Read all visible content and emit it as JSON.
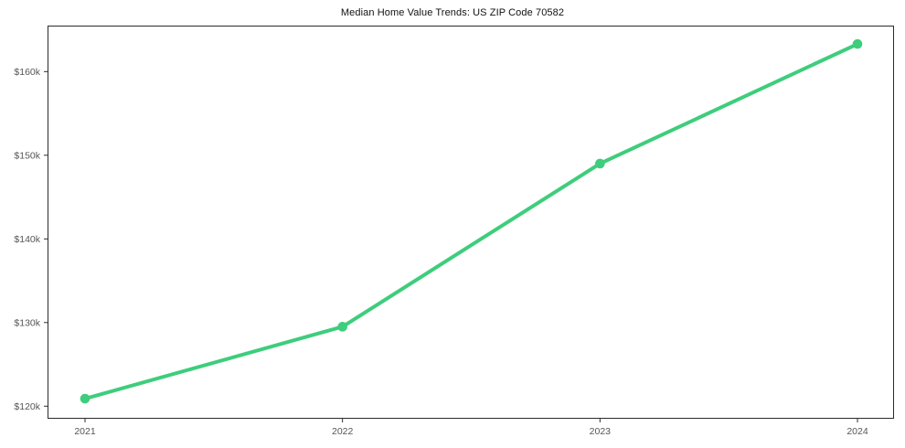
{
  "chart": {
    "line_color": "#3ecd7c",
    "marker_color": "#3ecd7c",
    "axis_color": "#2b2b2b",
    "tick_label_color": "#555555",
    "title_color": "#111111",
    "background_color": "#ffffff"
  },
  "chart_data": {
    "type": "line",
    "title": "Median Home Value Trends: US ZIP Code 70582",
    "x": [
      "2021",
      "2022",
      "2023",
      "2024"
    ],
    "values": [
      120900,
      129500,
      149000,
      163300
    ],
    "xlabel": "",
    "ylabel": "",
    "ylim": [
      118500,
      165500
    ],
    "yticks": [
      120000,
      130000,
      140000,
      150000,
      160000
    ],
    "ytick_labels": [
      "$120k",
      "$130k",
      "$140k",
      "$150k",
      "$160k"
    ],
    "grid": false,
    "legend": "none",
    "marker": "circle"
  }
}
